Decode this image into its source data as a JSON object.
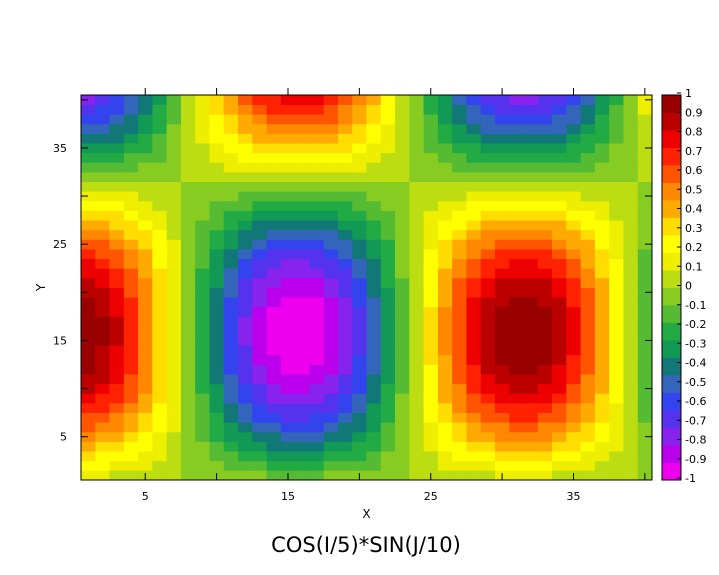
{
  "chart_data": {
    "type": "heatmap",
    "title": "COS(I/5)*SIN(J/10)",
    "xlabel": "X",
    "ylabel": "Y",
    "xlim": [
      0.5,
      40.5
    ],
    "ylim": [
      0.5,
      40.5
    ],
    "x_ticks": [
      5,
      15,
      25,
      35
    ],
    "y_ticks": [
      5,
      15,
      25,
      35
    ],
    "grid_size": 40,
    "function": "COS(I/5)*SIN(J/10)",
    "colorbar": {
      "min": -1,
      "max": 1,
      "step": 0.1,
      "labels": [
        "1",
        "0.9",
        "0.8",
        "0.7",
        "0.6",
        "0.5",
        "0.4",
        "0.3",
        "0.2",
        "0.1",
        "0",
        "-0.1",
        "-0.2",
        "-0.3",
        "-0.4",
        "-0.5",
        "-0.6",
        "-0.7",
        "-0.8",
        "-0.9",
        "-1"
      ],
      "colors": [
        "#ee00ee",
        "#bb00ee",
        "#8822ee",
        "#5533ee",
        "#3344ee",
        "#3366bb",
        "#117777",
        "#119955",
        "#22aa44",
        "#55bb33",
        "#88cc22",
        "#bbdd11",
        "#eeee00",
        "#ffff00",
        "#ffdd00",
        "#ffaa00",
        "#ff8800",
        "#ff5500",
        "#ff2200",
        "#ee0000",
        "#bb0000",
        "#990000"
      ]
    }
  }
}
